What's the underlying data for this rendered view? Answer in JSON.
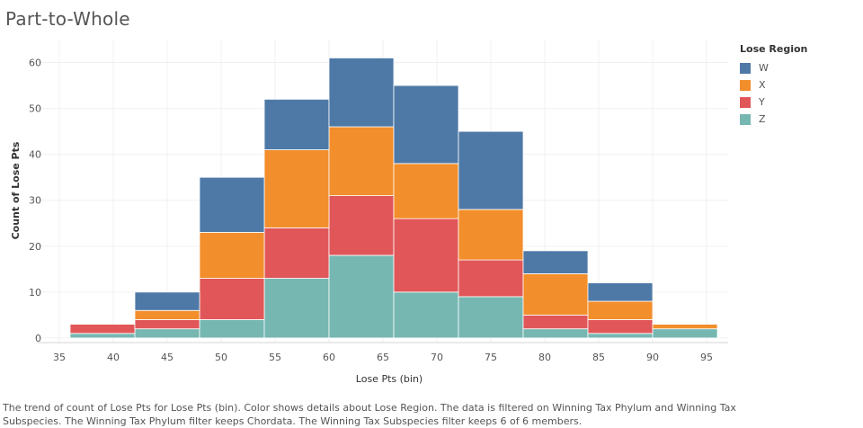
{
  "page": {
    "title": "Part-to-Whole",
    "caption": "The trend of count of Lose Pts for Lose Pts (bin).  Color shows details about Lose Region. The data is filtered on Winning Tax Phylum and Winning Tax Subspecies. The Winning Tax Phylum filter keeps Chordata. The Winning Tax Subspecies filter keeps 6 of 6 members."
  },
  "legend": {
    "title": "Lose Region",
    "items": [
      {
        "label": "W",
        "color": "#4e79a7"
      },
      {
        "label": "X",
        "color": "#f28e2b"
      },
      {
        "label": "Y",
        "color": "#e15759"
      },
      {
        "label": "Z",
        "color": "#76b7b2"
      }
    ]
  },
  "chart_data": {
    "type": "bar",
    "stacked": true,
    "xlabel": "Lose Pts (bin)",
    "ylabel": "Count of Lose Pts",
    "xlim": [
      33,
      97
    ],
    "ylim": [
      -1,
      65
    ],
    "xticks": [
      35,
      40,
      45,
      50,
      55,
      60,
      65,
      70,
      75,
      80,
      85,
      90,
      95
    ],
    "yticks": [
      0,
      10,
      20,
      30,
      40,
      50,
      60
    ],
    "bin_width": 6,
    "bin_starts": [
      36,
      42,
      48,
      54,
      60,
      66,
      72,
      78,
      84,
      90
    ],
    "series": [
      {
        "name": "Z",
        "color": "#76b7b2",
        "values": [
          1,
          2,
          4,
          13,
          18,
          10,
          9,
          2,
          1,
          2
        ]
      },
      {
        "name": "Y",
        "color": "#e15759",
        "values": [
          2,
          2,
          9,
          11,
          13,
          16,
          8,
          3,
          3,
          0
        ]
      },
      {
        "name": "X",
        "color": "#f28e2b",
        "values": [
          0,
          2,
          10,
          17,
          15,
          12,
          11,
          9,
          4,
          1
        ]
      },
      {
        "name": "W",
        "color": "#4e79a7",
        "values": [
          0,
          4,
          12,
          11,
          15,
          17,
          17,
          5,
          4,
          0
        ]
      }
    ],
    "grid": true
  }
}
